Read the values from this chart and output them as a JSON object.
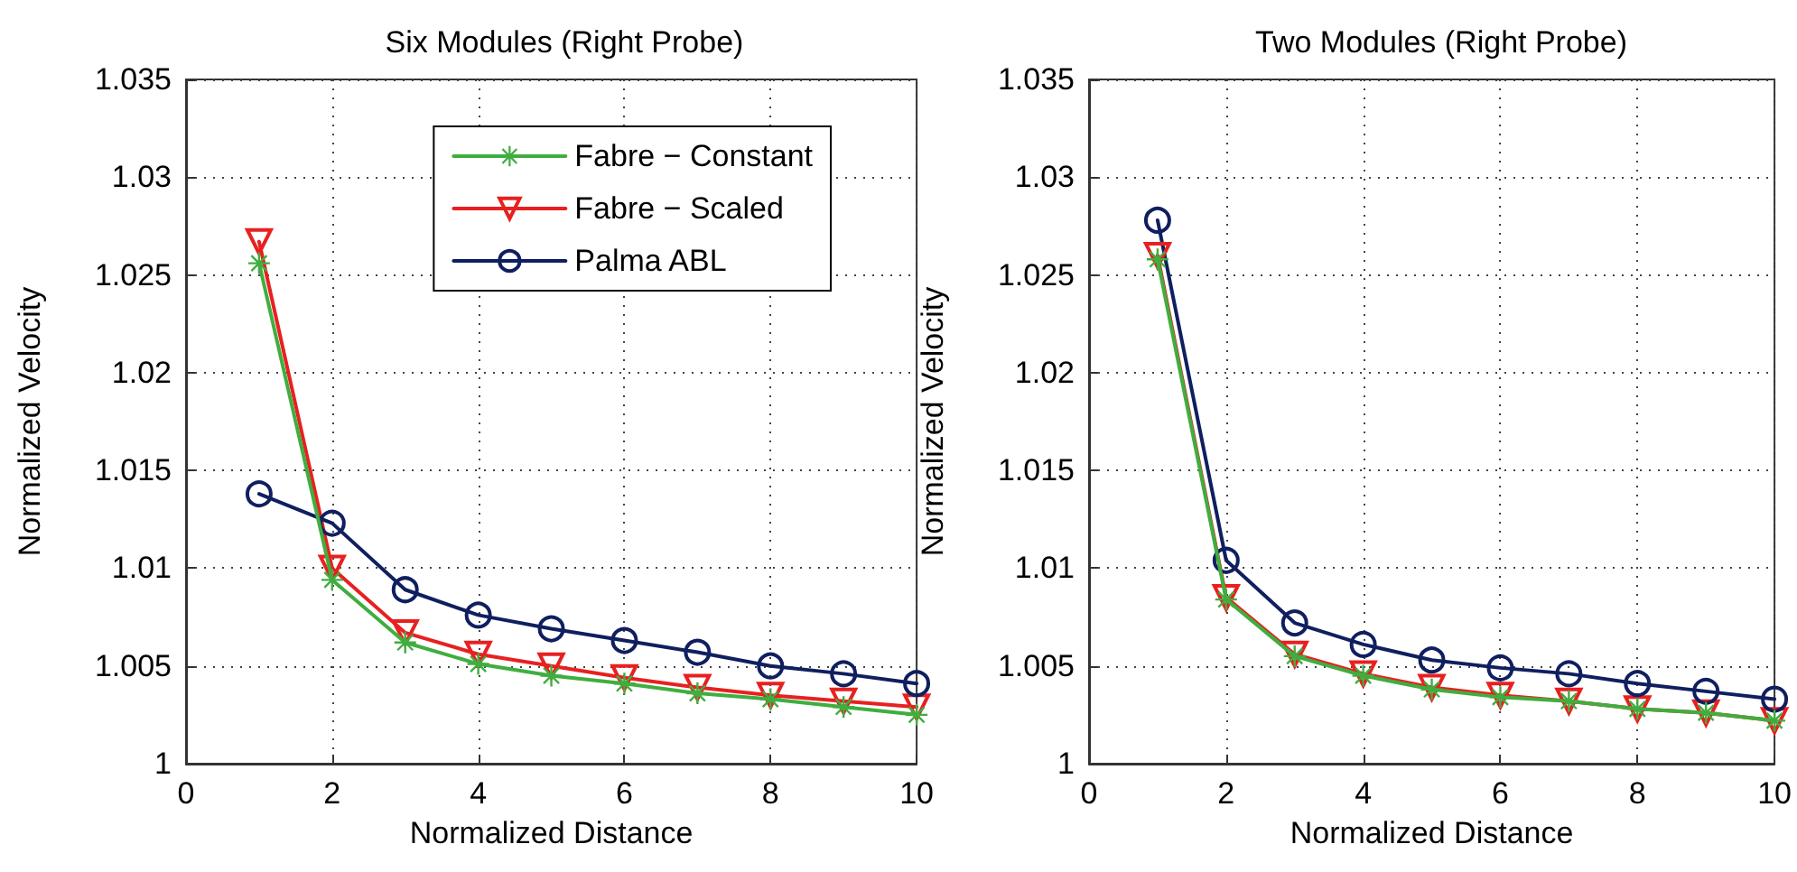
{
  "chart_data": [
    {
      "type": "line",
      "title": "Six Modules (Right Probe)",
      "xlabel": "Normalized Distance",
      "ylabel": "Normalized Velocity",
      "x": [
        1,
        2,
        3,
        4,
        5,
        6,
        7,
        8,
        9,
        10
      ],
      "series": [
        {
          "name": "Fabre − Constant",
          "color": "#3fae3f",
          "marker": "star",
          "values": [
            1.0256,
            1.0094,
            1.0062,
            1.0051,
            1.0045,
            1.0041,
            1.0036,
            1.0033,
            1.0029,
            1.0025
          ]
        },
        {
          "name": "Fabre − Scaled",
          "color": "#e82020",
          "marker": "triangle",
          "values": [
            1.0267,
            1.01,
            1.0067,
            1.0056,
            1.005,
            1.0044,
            1.0039,
            1.0035,
            1.0032,
            1.0029
          ]
        },
        {
          "name": "Palma ABL",
          "color": "#0f1f5f",
          "marker": "circle",
          "values": [
            1.0138,
            1.0123,
            1.0089,
            1.0076,
            1.0069,
            1.0063,
            1.0057,
            1.005,
            1.0046,
            1.0041
          ]
        }
      ],
      "xlim": [
        0,
        10
      ],
      "xticks": [
        0,
        2,
        4,
        6,
        8,
        10
      ],
      "ylim": [
        1,
        1.035
      ],
      "yticks": [
        1,
        1.005,
        1.01,
        1.015,
        1.02,
        1.025,
        1.03,
        1.035
      ],
      "grid": true,
      "legend": "top right",
      "line_style": "solid"
    },
    {
      "type": "line",
      "title": "Two Modules (Right Probe)",
      "xlabel": "Normalized Distance",
      "ylabel": "Normalized Velocity",
      "x": [
        1,
        2,
        3,
        4,
        5,
        6,
        7,
        8,
        9,
        10
      ],
      "series": [
        {
          "color": "#3fae3f",
          "marker": "star",
          "values": [
            1.0258,
            1.0084,
            1.0055,
            1.0045,
            1.0038,
            1.0034,
            1.0032,
            1.0028,
            1.0026,
            1.0022
          ]
        },
        {
          "color": "#e82020",
          "marker": "triangle",
          "values": [
            1.026,
            1.0085,
            1.0056,
            1.0046,
            1.0039,
            1.0035,
            1.0032,
            1.0028,
            1.0026,
            1.0022
          ]
        },
        {
          "color": "#0f1f5f",
          "marker": "circle",
          "values": [
            1.0278,
            1.0104,
            1.0072,
            1.0061,
            1.0053,
            1.0049,
            1.0046,
            1.0041,
            1.0037,
            1.0033
          ]
        }
      ],
      "xlim": [
        0,
        10
      ],
      "xticks": [
        0,
        2,
        4,
        6,
        8,
        10
      ],
      "ylim": [
        1,
        1.035
      ],
      "yticks": [
        1,
        1.005,
        1.01,
        1.015,
        1.02,
        1.025,
        1.03,
        1.035
      ],
      "grid": true,
      "legend": false,
      "line_style": "solid"
    }
  ]
}
